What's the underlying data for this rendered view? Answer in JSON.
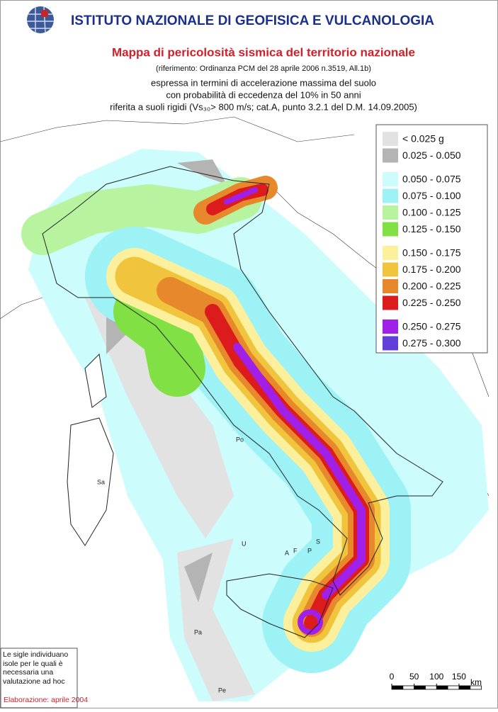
{
  "header": {
    "title": "ISTITUTO NAZIONALE DI GEOFISICA E VULCANOLOGIA"
  },
  "map": {
    "title": "Mappa di pericolosità sismica del territorio nazionale",
    "reference": "(riferimento: Ordinanza PCM del 28 aprile 2006 n.3519, All.1b)",
    "subtitle": [
      "espressa in termini di accelerazione massima del suolo",
      "con probabilità di eccedenza del 10% in 50 anni",
      "riferita a suoli rigidi (Vs₃₀> 800 m/s; cat.A, punto 3.2.1 del D.M. 14.09.2005)"
    ],
    "legend": {
      "groups": [
        [
          {
            "label": "< 0.025 g",
            "color": "#e2e2e2"
          },
          {
            "label": "0.025 - 0.050",
            "color": "#b4b4b4"
          }
        ],
        [
          {
            "label": "0.050 - 0.075",
            "color": "#ccfcfc"
          },
          {
            "label": "0.075 - 0.100",
            "color": "#9cf2f4"
          },
          {
            "label": "0.100 - 0.125",
            "color": "#b8f4a0"
          },
          {
            "label": "0.125 - 0.150",
            "color": "#80e044"
          }
        ],
        [
          {
            "label": "0.150 - 0.175",
            "color": "#fcf09c"
          },
          {
            "label": "0.175 - 0.200",
            "color": "#f0c43c"
          },
          {
            "label": "0.200 - 0.225",
            "color": "#e8882c"
          },
          {
            "label": "0.225 - 0.250",
            "color": "#dc1c1c"
          }
        ],
        [
          {
            "label": "0.250 - 0.275",
            "color": "#a020e8"
          },
          {
            "label": "0.275 - 0.300",
            "color": "#6040d8"
          }
        ]
      ]
    },
    "islands": [
      "Sa",
      "Po",
      "U",
      "A",
      "F",
      "P",
      "S",
      "Pa",
      "Pe"
    ],
    "note": "Le sigle individuano isole per le quali è necessaria una valutazione ad hoc",
    "date": "Elaborazione: aprile 2004",
    "scale": {
      "ticks": [
        0,
        50,
        100,
        150
      ],
      "unit": "km"
    }
  }
}
